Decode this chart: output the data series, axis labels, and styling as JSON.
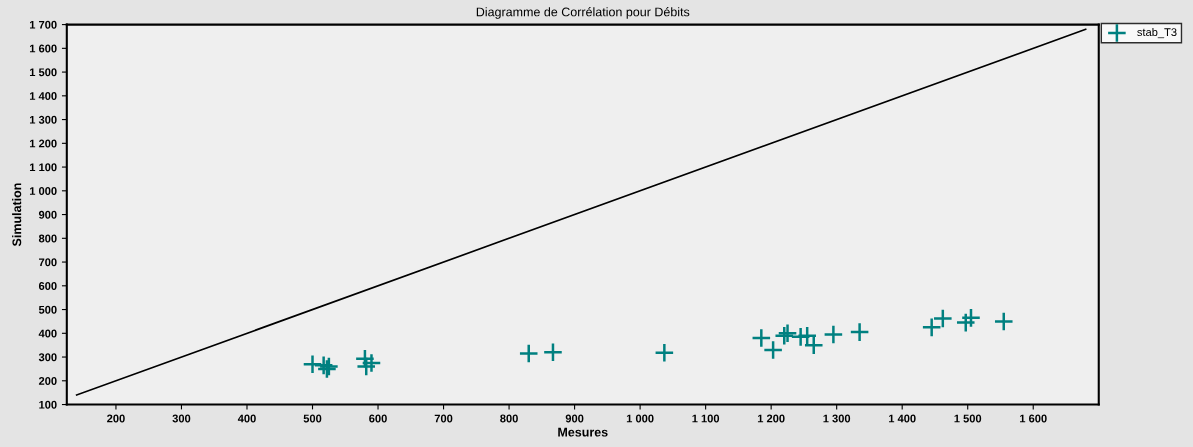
{
  "chart_data": {
    "type": "scatter",
    "title": "Diagramme de Corrélation pour Débits",
    "xlabel": "Mesures",
    "ylabel": "Simulation",
    "xlim": [
      125,
      1700
    ],
    "ylim": [
      100,
      1700
    ],
    "xticks": [
      200,
      300,
      400,
      500,
      600,
      700,
      800,
      900,
      {
        "value": 1000,
        "label": "1 000"
      },
      {
        "value": 1100,
        "label": "1 100"
      },
      {
        "value": 1200,
        "label": "1 200"
      },
      {
        "value": 1300,
        "label": "1 300"
      },
      {
        "value": 1400,
        "label": "1 400"
      },
      {
        "value": 1500,
        "label": "1 500"
      },
      {
        "value": 1600,
        "label": "1 600"
      }
    ],
    "yticks": [
      100,
      200,
      300,
      400,
      500,
      600,
      700,
      800,
      900,
      {
        "value": 1000,
        "label": "1 000"
      },
      {
        "value": 1100,
        "label": "1 100"
      },
      {
        "value": 1200,
        "label": "1 200"
      },
      {
        "value": 1300,
        "label": "1 300"
      },
      {
        "value": 1400,
        "label": "1 400"
      },
      {
        "value": 1500,
        "label": "1 500"
      },
      {
        "value": 1600,
        "label": "1 600"
      },
      {
        "value": 1700,
        "label": "1 700"
      }
    ],
    "grid": false,
    "legend": "top right",
    "series": [
      {
        "type": "line",
        "color": "#000000",
        "x": [
          140,
          1680
        ],
        "values": [
          140,
          1680
        ],
        "marker": "none"
      },
      {
        "name": "stab_T3",
        "color": "#008080",
        "marker": "cross",
        "x": [
          500,
          517,
          522,
          525,
          580,
          582,
          590,
          830,
          867,
          1037,
          1185,
          1203,
          1220,
          1225,
          1245,
          1255,
          1265,
          1295,
          1335,
          1445,
          1462,
          1497,
          1505,
          1555
        ],
        "values": [
          270,
          265,
          250,
          260,
          293,
          260,
          275,
          315,
          320,
          318,
          380,
          330,
          390,
          400,
          385,
          390,
          350,
          395,
          405,
          425,
          462,
          445,
          465,
          450
        ]
      }
    ]
  }
}
